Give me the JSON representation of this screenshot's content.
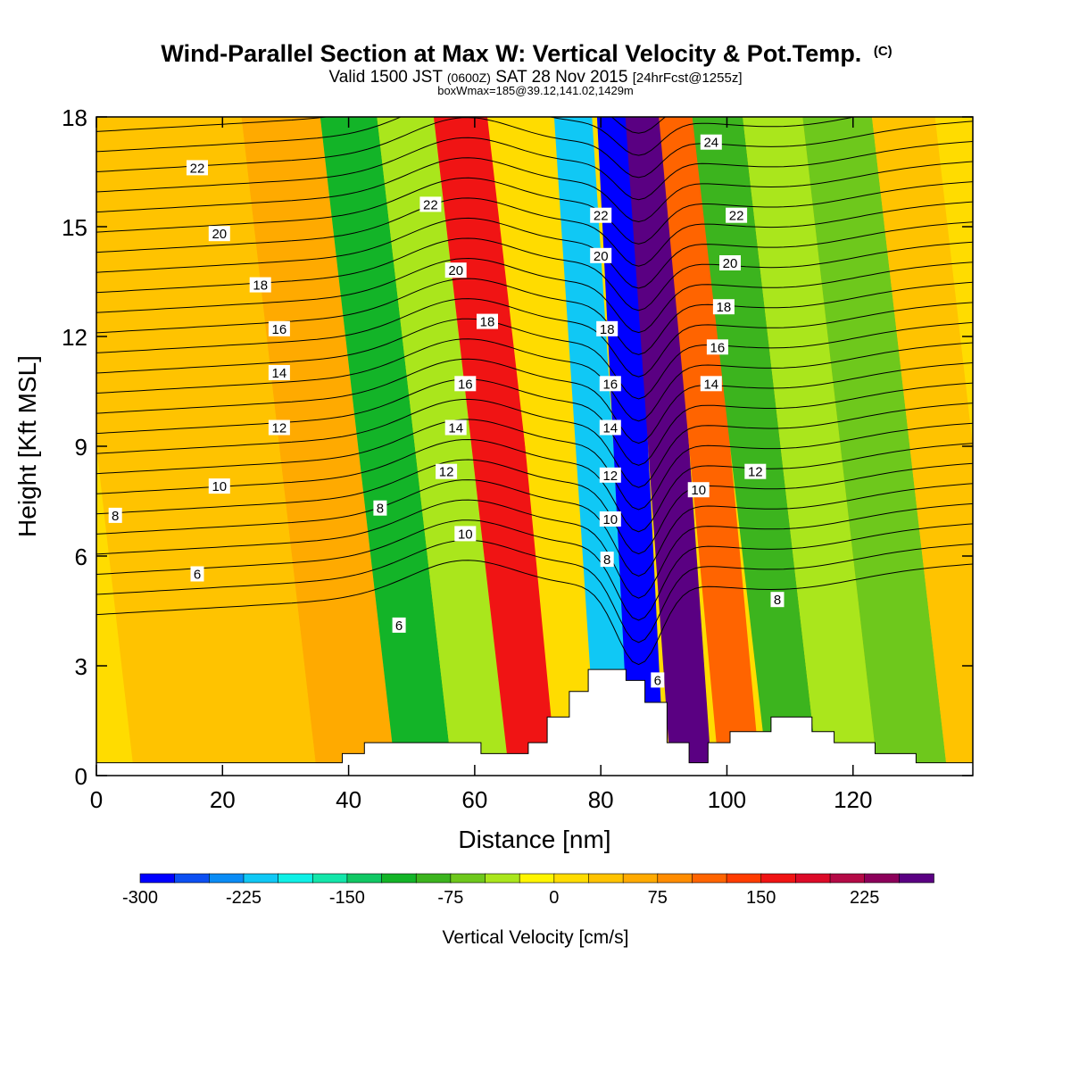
{
  "chart_data": {
    "type": "heatmap",
    "title": "Wind-Parallel Section at Max W: Vertical Velocity & Pot.Temp.",
    "title_mark": "(C)",
    "subtitle_parts": {
      "a": "Valid 1500 JST",
      "b": "(0600Z)",
      "c": "SAT 28 Nov 2015",
      "d": "[24hrFcst@1255z]"
    },
    "info_line": "boxWmax=185@39.12,141.02,1429m",
    "xlabel": "Distance [nm]",
    "ylabel": "Height [Kft MSL]",
    "xlim": [
      0,
      139
    ],
    "ylim": [
      0,
      18
    ],
    "x_ticks": [
      "0",
      "20",
      "40",
      "60",
      "80",
      "100",
      "120"
    ],
    "y_ticks": [
      "0",
      "3",
      "6",
      "9",
      "12",
      "15",
      "18"
    ],
    "colorbar": {
      "label": "Vertical Velocity [cm/s]",
      "range": [
        -300,
        250
      ],
      "step": 25,
      "tick_labels": [
        "-300",
        "-225",
        "-150",
        "-75",
        "0",
        "75",
        "150",
        "225"
      ],
      "colors": [
        "#0000ff",
        "#0c4ff2",
        "#0a8cf5",
        "#10c8f5",
        "#0ff0e6",
        "#13e6aa",
        "#11c864",
        "#13b428",
        "#3cb41e",
        "#6ec81c",
        "#aae61c",
        "#fff500",
        "#ffdc00",
        "#ffc300",
        "#ffaa00",
        "#ff8c00",
        "#ff6400",
        "#ff3c00",
        "#f01414",
        "#dc0a28",
        "#b40a46",
        "#8c005a",
        "#5a0082"
      ]
    },
    "vertical_velocity_bands": [
      {
        "x": 21,
        "value": 25
      },
      {
        "x": 37,
        "value": 50
      },
      {
        "x": 46,
        "value": -120
      },
      {
        "x": 55,
        "value": -30
      },
      {
        "x": 64,
        "value": 150
      },
      {
        "x": 72,
        "value": 10
      },
      {
        "x": 80,
        "value": -220
      },
      {
        "x": 84,
        "value": -300
      },
      {
        "x": 91,
        "value": 250
      },
      {
        "x": 97,
        "value": 100
      },
      {
        "x": 104,
        "value": -100
      },
      {
        "x": 113,
        "value": -50
      },
      {
        "x": 123,
        "value": -60
      },
      {
        "x": 135,
        "value": 30
      }
    ],
    "terrain": [
      {
        "x": 0,
        "h": 0.35
      },
      {
        "x": 39,
        "h": 0.35
      },
      {
        "x": 39,
        "h": 0.6
      },
      {
        "x": 42.5,
        "h": 0.6
      },
      {
        "x": 42.5,
        "h": 0.9
      },
      {
        "x": 61,
        "h": 0.9
      },
      {
        "x": 61,
        "h": 0.6
      },
      {
        "x": 68.5,
        "h": 0.6
      },
      {
        "x": 68.5,
        "h": 0.9
      },
      {
        "x": 71.5,
        "h": 0.9
      },
      {
        "x": 71.5,
        "h": 1.6
      },
      {
        "x": 75,
        "h": 1.6
      },
      {
        "x": 75,
        "h": 2.3
      },
      {
        "x": 78,
        "h": 2.3
      },
      {
        "x": 78,
        "h": 2.9
      },
      {
        "x": 84,
        "h": 2.9
      },
      {
        "x": 84,
        "h": 2.6
      },
      {
        "x": 87,
        "h": 2.6
      },
      {
        "x": 87,
        "h": 2.0
      },
      {
        "x": 90.5,
        "h": 2.0
      },
      {
        "x": 90.5,
        "h": 0.9
      },
      {
        "x": 94,
        "h": 0.9
      },
      {
        "x": 94,
        "h": 0.35
      },
      {
        "x": 97,
        "h": 0.35
      },
      {
        "x": 97,
        "h": 0.9
      },
      {
        "x": 100.5,
        "h": 0.9
      },
      {
        "x": 100.5,
        "h": 1.2
      },
      {
        "x": 107,
        "h": 1.2
      },
      {
        "x": 107,
        "h": 1.6
      },
      {
        "x": 113.5,
        "h": 1.6
      },
      {
        "x": 113.5,
        "h": 1.2
      },
      {
        "x": 117,
        "h": 1.2
      },
      {
        "x": 117,
        "h": 0.9
      },
      {
        "x": 123.5,
        "h": 0.9
      },
      {
        "x": 123.5,
        "h": 0.6
      },
      {
        "x": 130,
        "h": 0.6
      },
      {
        "x": 130,
        "h": 0.35
      },
      {
        "x": 139,
        "h": 0.35
      }
    ],
    "contour_labels": [
      {
        "text": "22",
        "x": 16,
        "y": 16.6
      },
      {
        "text": "20",
        "x": 19.5,
        "y": 14.8
      },
      {
        "text": "18",
        "x": 26,
        "y": 13.4
      },
      {
        "text": "16",
        "x": 29,
        "y": 12.2
      },
      {
        "text": "14",
        "x": 29,
        "y": 11.0
      },
      {
        "text": "12",
        "x": 29,
        "y": 9.5
      },
      {
        "text": "10",
        "x": 19.5,
        "y": 7.9
      },
      {
        "text": "8",
        "x": 3,
        "y": 7.1
      },
      {
        "text": "6",
        "x": 16,
        "y": 5.5
      },
      {
        "text": "6",
        "x": 48,
        "y": 4.1
      },
      {
        "text": "8",
        "x": 45,
        "y": 7.3
      },
      {
        "text": "10",
        "x": 58.5,
        "y": 6.6
      },
      {
        "text": "12",
        "x": 55.5,
        "y": 8.3
      },
      {
        "text": "14",
        "x": 57,
        "y": 9.5
      },
      {
        "text": "16",
        "x": 58.5,
        "y": 10.7
      },
      {
        "text": "18",
        "x": 62,
        "y": 12.4
      },
      {
        "text": "20",
        "x": 57,
        "y": 13.8
      },
      {
        "text": "22",
        "x": 53,
        "y": 15.6
      },
      {
        "text": "22",
        "x": 80,
        "y": 15.3
      },
      {
        "text": "20",
        "x": 80,
        "y": 14.2
      },
      {
        "text": "18",
        "x": 81,
        "y": 12.2
      },
      {
        "text": "16",
        "x": 81.5,
        "y": 10.7
      },
      {
        "text": "14",
        "x": 81.5,
        "y": 9.5
      },
      {
        "text": "12",
        "x": 81.5,
        "y": 8.2
      },
      {
        "text": "10",
        "x": 81.5,
        "y": 7.0
      },
      {
        "text": "8",
        "x": 81,
        "y": 5.9
      },
      {
        "text": "6",
        "x": 89,
        "y": 2.6
      },
      {
        "text": "10",
        "x": 95.5,
        "y": 7.8
      },
      {
        "text": "12",
        "x": 104.5,
        "y": 8.3
      },
      {
        "text": "14",
        "x": 97.5,
        "y": 10.7
      },
      {
        "text": "16",
        "x": 98.5,
        "y": 11.7
      },
      {
        "text": "18",
        "x": 99.5,
        "y": 12.8
      },
      {
        "text": "20",
        "x": 100.5,
        "y": 14.0
      },
      {
        "text": "22",
        "x": 101.5,
        "y": 15.3
      },
      {
        "text": "24",
        "x": 97.5,
        "y": 17.3
      },
      {
        "text": "8",
        "x": 108,
        "y": 4.8
      }
    ]
  }
}
